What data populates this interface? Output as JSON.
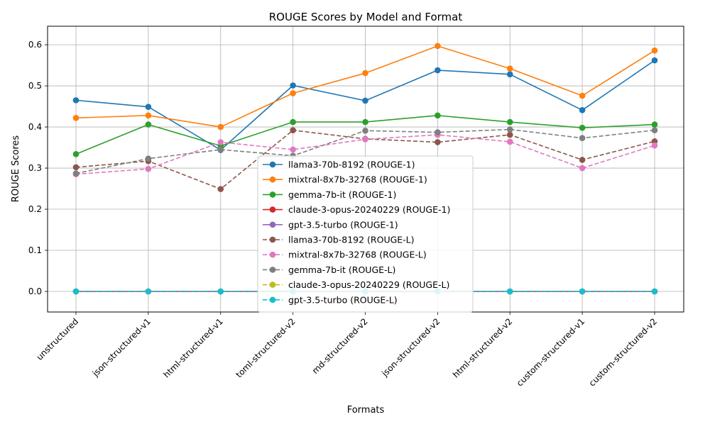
{
  "chart_data": {
    "type": "line",
    "title": "ROUGE Scores by Model and Format",
    "xlabel": "Formats",
    "ylabel": "ROUGE Scores",
    "ylim": [
      -0.05,
      0.645
    ],
    "yticks": [
      "0.0",
      "0.1",
      "0.2",
      "0.3",
      "0.4",
      "0.5",
      "0.6"
    ],
    "ytick_values": [
      0.0,
      0.1,
      0.2,
      0.3,
      0.4,
      0.5,
      0.6
    ],
    "grid": true,
    "legend_position": "lower-center",
    "categories": [
      "unstructured",
      "json-structured-v1",
      "html-structured-v1",
      "toml-structured-v2",
      "md-structured-v2",
      "json-structured-v2",
      "html-structured-v2",
      "custom-structured-v1",
      "custom-structured-v2"
    ],
    "series": [
      {
        "name": "llama3-70b-8192 (ROUGE-1)",
        "color": "#1f77b4",
        "dashed": false,
        "values": [
          0.465,
          0.449,
          0.344,
          0.501,
          0.464,
          0.538,
          0.528,
          0.441,
          0.562
        ]
      },
      {
        "name": "mixtral-8x7b-32768 (ROUGE-1)",
        "color": "#ff7f0e",
        "dashed": false,
        "values": [
          0.422,
          0.428,
          0.4,
          0.482,
          0.531,
          0.597,
          0.542,
          0.476,
          0.586
        ]
      },
      {
        "name": "gemma-7b-it (ROUGE-1)",
        "color": "#2ca02c",
        "dashed": false,
        "values": [
          0.334,
          0.406,
          0.354,
          0.412,
          0.412,
          0.428,
          0.412,
          0.398,
          0.406
        ]
      },
      {
        "name": "claude-3-opus-20240229 (ROUGE-1)",
        "color": "#d62728",
        "dashed": false,
        "values": [
          0,
          0,
          0,
          0,
          0,
          0,
          0,
          0,
          0
        ]
      },
      {
        "name": "gpt-3.5-turbo (ROUGE-1)",
        "color": "#9467bd",
        "dashed": false,
        "values": [
          0,
          0,
          0,
          0,
          0,
          0,
          0,
          0,
          0
        ]
      },
      {
        "name": "llama3-70b-8192 (ROUGE-L)",
        "color": "#8c564b",
        "dashed": true,
        "values": [
          0.302,
          0.317,
          0.249,
          0.392,
          0.371,
          0.363,
          0.381,
          0.32,
          0.365
        ]
      },
      {
        "name": "mixtral-8x7b-32768 (ROUGE-L)",
        "color": "#e377c2",
        "dashed": true,
        "values": [
          0.285,
          0.298,
          0.363,
          0.345,
          0.37,
          0.381,
          0.364,
          0.3,
          0.355
        ]
      },
      {
        "name": "gemma-7b-it (ROUGE-L)",
        "color": "#7f7f7f",
        "dashed": true,
        "values": [
          0.287,
          0.323,
          0.345,
          0.33,
          0.391,
          0.387,
          0.394,
          0.373,
          0.392
        ]
      },
      {
        "name": "claude-3-opus-20240229 (ROUGE-L)",
        "color": "#bcbd22",
        "dashed": true,
        "values": [
          0,
          0,
          0,
          0,
          0,
          0,
          0,
          0,
          0
        ]
      },
      {
        "name": "gpt-3.5-turbo (ROUGE-L)",
        "color": "#17becf",
        "dashed": true,
        "values": [
          0,
          0,
          0,
          0,
          0,
          0,
          0,
          0,
          0
        ]
      }
    ]
  }
}
